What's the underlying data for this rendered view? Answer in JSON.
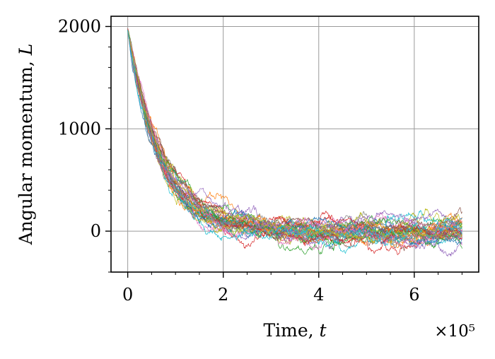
{
  "chart_data": {
    "type": "line",
    "xlabel": "Time, t",
    "ylabel": "Angular momentum, L",
    "x_multiplier_label": "×10⁵",
    "x_scale_factor": 100000,
    "xlim": [
      -35000,
      735000
    ],
    "ylim": [
      -400,
      2100
    ],
    "x_ticks": [
      {
        "value": 0,
        "label": "0"
      },
      {
        "value": 200000,
        "label": "2"
      },
      {
        "value": 400000,
        "label": "4"
      },
      {
        "value": 600000,
        "label": "6"
      }
    ],
    "y_ticks": [
      {
        "value": 0,
        "label": "0"
      },
      {
        "value": 1000,
        "label": "1000"
      },
      {
        "value": 2000,
        "label": "2000"
      }
    ],
    "grid": true,
    "legend": "none",
    "trajectory_model": {
      "count": 40,
      "L0": 1970,
      "decay_time": 70000,
      "t_start": 0,
      "t_end": 700000,
      "steady_state_mean": 0,
      "steady_state_spread": [
        -280,
        300
      ]
    },
    "series_colors": [
      "#1f77b4",
      "#ff7f0e",
      "#2ca02c",
      "#d62728",
      "#9467bd",
      "#8c564b",
      "#e377c2",
      "#7f7f7f",
      "#bcbd22",
      "#17becf"
    ]
  }
}
